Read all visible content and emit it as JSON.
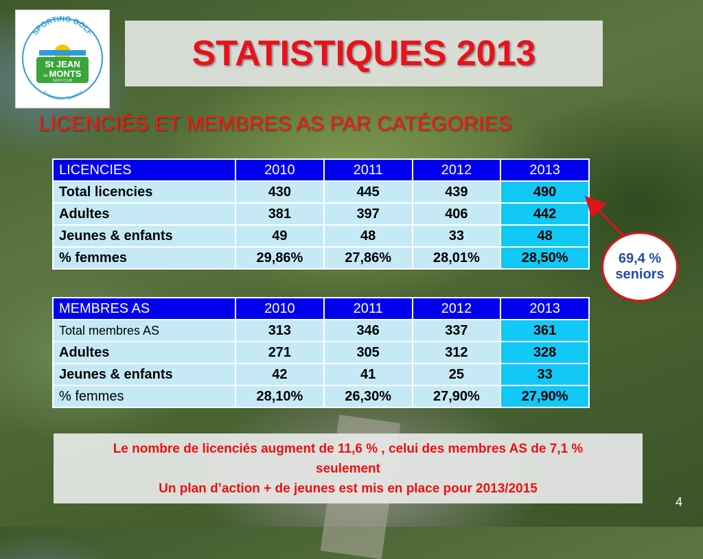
{
  "slide": {
    "title": "STATISTIQUES 2013",
    "subtitle": "LICENCIÉS ET MEMBRES AS PAR CATÉGORIES",
    "page_number": "4"
  },
  "logo": {
    "top_text": "SPORTING GOLF",
    "main_line1": "St JEAN",
    "main_small": "de",
    "main_line2": "MONTS",
    "club": "GOLF CLUB",
    "bottom_text": "Association Sportive"
  },
  "licences_table": {
    "headers": [
      "LICENCIES",
      "2010",
      "2011",
      "2012",
      "2013"
    ],
    "rows": [
      [
        "Total licencies",
        "430",
        "445",
        "439",
        "490"
      ],
      [
        "Adultes",
        "381",
        "397",
        "406",
        "442"
      ],
      [
        "Jeunes & enfants",
        "49",
        "48",
        "33",
        "48"
      ],
      [
        "% femmes",
        "29,86%",
        "27,86%",
        "28,01%",
        "28,50%"
      ]
    ]
  },
  "membres_table": {
    "headers": [
      "MEMBRES AS",
      "2010",
      "2011",
      "2012",
      "2013"
    ],
    "rows": [
      [
        "Total membres AS",
        "313",
        "346",
        "337",
        "361"
      ],
      [
        "Adultes",
        "271",
        "305",
        "312",
        "328"
      ],
      [
        "Jeunes & enfants",
        "42",
        "41",
        "25",
        "33"
      ],
      [
        "% femmes",
        "28,10%",
        "26,30%",
        "27,90%",
        "27,90%"
      ]
    ]
  },
  "callout": {
    "line1": "69,4 %",
    "line2": "seniors"
  },
  "note": {
    "line1": "Le nombre de licenciés augment de 11,6 % , celui des membres AS de 7,1 %",
    "line2": "seulement",
    "line3": "Un plan d’action + de jeunes est mis en place pour 2013/2015"
  },
  "colors": {
    "title_red": "#e8121b",
    "header_blue": "#0000ee",
    "cell_light": "#c6eaf5",
    "cell_highlight": "#12c8f5",
    "callout_text": "#1f4ea8"
  }
}
